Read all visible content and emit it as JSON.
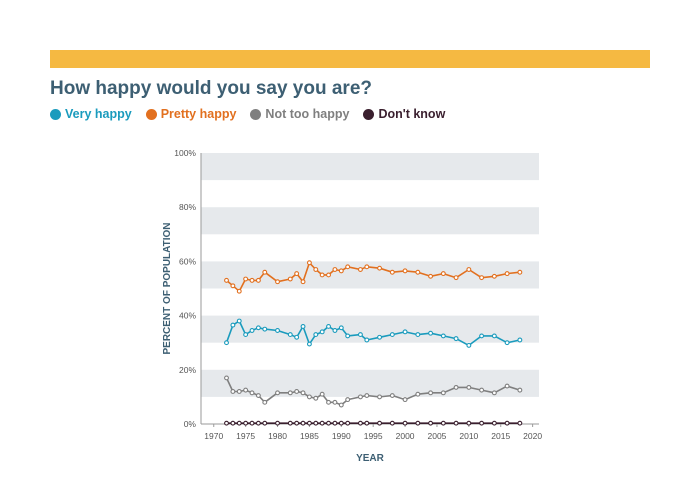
{
  "colors": {
    "top_bar": "#f5b942",
    "title": "#3d5f73",
    "band": "#e6e9ec",
    "very_happy": "#1a9bbd",
    "pretty_happy": "#e2701f",
    "not_too_happy": "#7f7f7f",
    "dont_know": "#3a1f2e"
  },
  "title": "How happy would you say you are?",
  "legend": [
    {
      "label": "Very happy",
      "color": "#1a9bbd"
    },
    {
      "label": "Pretty happy",
      "color": "#e2701f"
    },
    {
      "label": "Not too happy",
      "color": "#7f7f7f"
    },
    {
      "label": "Don't know",
      "color": "#3a1f2e"
    }
  ],
  "chart_data": {
    "type": "line",
    "xlabel": "YEAR",
    "ylabel": "PERCENT OF POPULATION",
    "xlim": [
      1968,
      2021
    ],
    "ylim": [
      0,
      100
    ],
    "x_ticks": [
      1970,
      1975,
      1980,
      1985,
      1990,
      1995,
      2000,
      2005,
      2010,
      2015,
      2020
    ],
    "y_ticks": [
      0,
      20,
      40,
      60,
      80,
      100
    ],
    "y_tick_labels": [
      "0%",
      "20%",
      "40%",
      "60%",
      "80%",
      "100%"
    ],
    "grid": "alternating horizontal bands",
    "legend_position": "top-left",
    "x": [
      1972,
      1973,
      1974,
      1975,
      1976,
      1977,
      1978,
      1980,
      1982,
      1983,
      1984,
      1985,
      1986,
      1987,
      1988,
      1989,
      1990,
      1991,
      1993,
      1994,
      1996,
      1998,
      2000,
      2002,
      2004,
      2006,
      2008,
      2010,
      2012,
      2014,
      2016,
      2018
    ],
    "series": [
      {
        "name": "Very happy",
        "color": "#1a9bbd",
        "values": [
          30,
          36.5,
          38,
          33,
          34.5,
          35.5,
          35,
          34.5,
          33,
          32,
          36,
          29.5,
          33,
          34,
          36,
          34.5,
          35.5,
          32.5,
          33,
          31,
          32,
          33,
          34,
          33,
          33.5,
          32.5,
          31.5,
          29,
          32.5,
          32.5,
          30,
          31
        ]
      },
      {
        "name": "Pretty happy",
        "color": "#e2701f",
        "values": [
          53,
          51,
          49,
          53.5,
          53,
          53,
          56,
          52.5,
          53.5,
          55.5,
          52.5,
          59.5,
          57,
          55,
          55,
          57,
          56.5,
          58,
          57,
          58,
          57.5,
          56,
          56.5,
          56,
          54.5,
          55.5,
          54,
          57,
          54,
          54.5,
          55.5,
          56
        ]
      },
      {
        "name": "Not too happy",
        "color": "#7f7f7f",
        "values": [
          17,
          12,
          12,
          12.5,
          11.5,
          10.5,
          8,
          11.5,
          11.5,
          12,
          11.5,
          10,
          9.5,
          11,
          8,
          8,
          7,
          9,
          10,
          10.5,
          10,
          10.5,
          9,
          11,
          11.5,
          11.5,
          13.5,
          13.5,
          12.5,
          11.5,
          14,
          12.5
        ]
      },
      {
        "name": "Don't know",
        "color": "#3a1f2e",
        "values": [
          0.3,
          0.3,
          0.3,
          0.3,
          0.3,
          0.3,
          0.3,
          0.3,
          0.3,
          0.3,
          0.3,
          0.3,
          0.3,
          0.3,
          0.3,
          0.3,
          0.3,
          0.3,
          0.3,
          0.3,
          0.3,
          0.3,
          0.3,
          0.3,
          0.3,
          0.3,
          0.3,
          0.3,
          0.3,
          0.3,
          0.3,
          0.3
        ]
      }
    ]
  }
}
